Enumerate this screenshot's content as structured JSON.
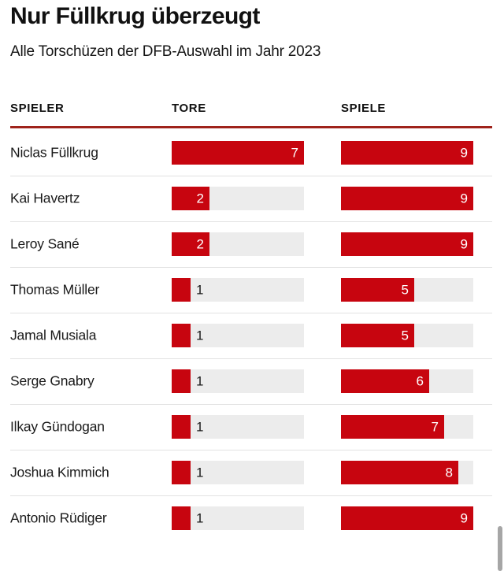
{
  "page": {
    "title": "Nur Füllkrug überzeugt",
    "subtitle": "Alle Torschüzen der DFB-Auswahl im Jahr 2023"
  },
  "table": {
    "columns": [
      {
        "label": "SPIELER"
      },
      {
        "label": "TORE"
      },
      {
        "label": "SPIELE"
      }
    ]
  },
  "chart_data": {
    "type": "bar",
    "title": "Nur Füllkrug überzeugt",
    "subtitle": "Alle Torschüzen der DFB-Auswahl im Jahr 2023",
    "orientation": "horizontal",
    "categories": [
      "Niclas Füllkrug",
      "Kai Havertz",
      "Leroy Sané",
      "Thomas Müller",
      "Jamal Musiala",
      "Serge Gnabry",
      "Ilkay Gündogan",
      "Joshua Kimmich",
      "Antonio Rüdiger"
    ],
    "series": [
      {
        "name": "Tore",
        "values": [
          7,
          2,
          2,
          1,
          1,
          1,
          1,
          1,
          1
        ],
        "max": 7
      },
      {
        "name": "Spiele",
        "values": [
          9,
          9,
          9,
          5,
          5,
          6,
          7,
          8,
          9
        ],
        "max": 9
      }
    ],
    "legend": false,
    "grid": false,
    "value_labels": "on-bar"
  },
  "colors": {
    "bar_fill": "#c7050f",
    "bar_track": "#ececec",
    "header_rule": "#9f231b",
    "row_separator": "#e2e2e2",
    "label_inside": "#ffffff",
    "label_outside": "#1a1a1a"
  }
}
